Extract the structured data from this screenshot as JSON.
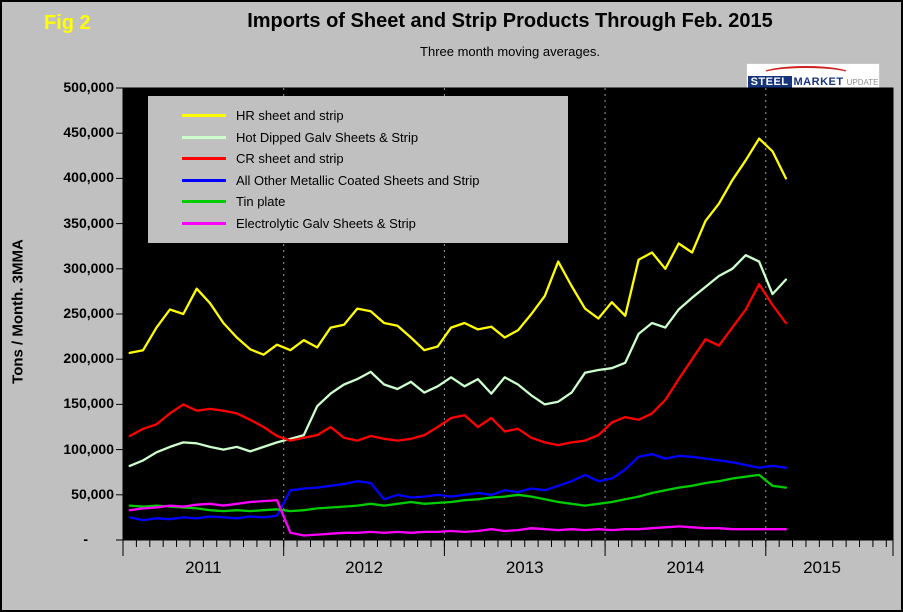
{
  "fig_label": "Fig 2",
  "title": "Imports of Sheet and Strip Products Through Feb. 2015",
  "subtitle": "Three month moving averages.",
  "logo": {
    "steel": "STEEL",
    "market": "MARKET",
    "update": "UPDATE"
  },
  "y_axis_label": "Tons / Month. 3MMA",
  "chart_data": {
    "type": "line",
    "title": "Imports of Sheet and Strip Products Through Feb. 2015",
    "subtitle": "Three month moving averages.",
    "ylabel": "Tons / Month. 3MMA",
    "ylim": [
      0,
      500000
    ],
    "y_tick_interval": 50000,
    "y_tick_labels": [
      "-",
      "50,000",
      "100,000",
      "150,000",
      "200,000",
      "250,000",
      "300,000",
      "350,000",
      "400,000",
      "450,000",
      "500,000"
    ],
    "x_year_labels": [
      "2011",
      "2012",
      "2013",
      "2014",
      "2015"
    ],
    "plot_bg": "#000000",
    "canvas_bg": "#c0c0c0",
    "grid": "dashed-vertical-lines-at-year-starts",
    "legend_position": "top-left-inside",
    "x": [
      "2011-01",
      "2011-02",
      "2011-03",
      "2011-04",
      "2011-05",
      "2011-06",
      "2011-07",
      "2011-08",
      "2011-09",
      "2011-10",
      "2011-11",
      "2011-12",
      "2012-01",
      "2012-02",
      "2012-03",
      "2012-04",
      "2012-05",
      "2012-06",
      "2012-07",
      "2012-08",
      "2012-09",
      "2012-10",
      "2012-11",
      "2012-12",
      "2013-01",
      "2013-02",
      "2013-03",
      "2013-04",
      "2013-05",
      "2013-06",
      "2013-07",
      "2013-08",
      "2013-09",
      "2013-10",
      "2013-11",
      "2013-12",
      "2014-01",
      "2014-02",
      "2014-03",
      "2014-04",
      "2014-05",
      "2014-06",
      "2014-07",
      "2014-08",
      "2014-09",
      "2014-10",
      "2014-11",
      "2014-12",
      "2015-01",
      "2015-02"
    ],
    "series": [
      {
        "name": "HR sheet and strip",
        "color": "#ffff00",
        "values": [
          207000,
          210000,
          235000,
          255000,
          250000,
          278000,
          262000,
          240000,
          224000,
          211000,
          205000,
          216000,
          210000,
          221000,
          213000,
          235000,
          238000,
          256000,
          253000,
          240000,
          237000,
          224000,
          210000,
          214000,
          235000,
          240000,
          233000,
          236000,
          224000,
          232000,
          250000,
          270000,
          308000,
          281000,
          256000,
          245000,
          263000,
          248000,
          310000,
          318000,
          300000,
          328000,
          318000,
          353000,
          372000,
          398000,
          420000,
          444000,
          430000,
          400000
        ]
      },
      {
        "name": "Hot Dipped Galv Sheets & Strip",
        "color": "#ccffcc",
        "values": [
          82000,
          88000,
          97000,
          103000,
          108000,
          107000,
          103000,
          100000,
          103000,
          98000,
          103000,
          108000,
          112000,
          116000,
          148000,
          162000,
          172000,
          178000,
          186000,
          172000,
          167000,
          175000,
          163000,
          170000,
          180000,
          170000,
          178000,
          162000,
          180000,
          172000,
          160000,
          150000,
          153000,
          163000,
          185000,
          188000,
          190000,
          196000,
          228000,
          240000,
          235000,
          255000,
          268000,
          280000,
          292000,
          300000,
          315000,
          308000,
          272000,
          288000
        ]
      },
      {
        "name": "CR sheet and strip",
        "color": "#ff0000",
        "values": [
          115000,
          123000,
          128000,
          140000,
          150000,
          143000,
          145000,
          143000,
          140000,
          133000,
          125000,
          115000,
          110000,
          113000,
          116000,
          125000,
          113000,
          110000,
          115000,
          112000,
          110000,
          112000,
          116000,
          125000,
          135000,
          138000,
          125000,
          135000,
          120000,
          123000,
          113000,
          108000,
          105000,
          108000,
          110000,
          116000,
          130000,
          136000,
          133000,
          140000,
          155000,
          178000,
          200000,
          222000,
          215000,
          235000,
          255000,
          283000,
          260000,
          240000
        ]
      },
      {
        "name": "All Other Metallic Coated Sheets and Strip",
        "color": "#0000ff",
        "values": [
          25000,
          22000,
          24000,
          23000,
          25000,
          24000,
          26000,
          25000,
          24000,
          26000,
          25000,
          27000,
          55000,
          57000,
          58000,
          60000,
          62000,
          65000,
          63000,
          45000,
          50000,
          47000,
          48000,
          50000,
          48000,
          50000,
          52000,
          50000,
          55000,
          53000,
          57000,
          55000,
          60000,
          65000,
          72000,
          65000,
          68000,
          78000,
          92000,
          95000,
          90000,
          93000,
          92000,
          90000,
          88000,
          86000,
          83000,
          80000,
          82000,
          80000
        ]
      },
      {
        "name": "Tin plate",
        "color": "#00cc00",
        "values": [
          38000,
          37000,
          38000,
          37000,
          36000,
          35000,
          33000,
          32000,
          33000,
          32000,
          33000,
          34000,
          32000,
          33000,
          35000,
          36000,
          37000,
          38000,
          40000,
          38000,
          40000,
          42000,
          40000,
          41000,
          42000,
          44000,
          45000,
          47000,
          48000,
          50000,
          48000,
          45000,
          42000,
          40000,
          38000,
          40000,
          42000,
          45000,
          48000,
          52000,
          55000,
          58000,
          60000,
          63000,
          65000,
          68000,
          70000,
          72000,
          60000,
          58000
        ]
      },
      {
        "name": "Electrolytic Galv Sheets & Strip",
        "color": "#ff00ff",
        "values": [
          33000,
          35000,
          36000,
          38000,
          37000,
          39000,
          40000,
          38000,
          40000,
          42000,
          43000,
          44000,
          8000,
          5000,
          6000,
          7000,
          8000,
          8000,
          9000,
          8000,
          9000,
          8000,
          9000,
          9000,
          10000,
          9000,
          10000,
          12000,
          10000,
          11000,
          13000,
          12000,
          11000,
          12000,
          11000,
          12000,
          11000,
          12000,
          12000,
          13000,
          14000,
          15000,
          14000,
          13000,
          13000,
          12000,
          12000,
          12000,
          12000,
          12000
        ]
      }
    ]
  }
}
